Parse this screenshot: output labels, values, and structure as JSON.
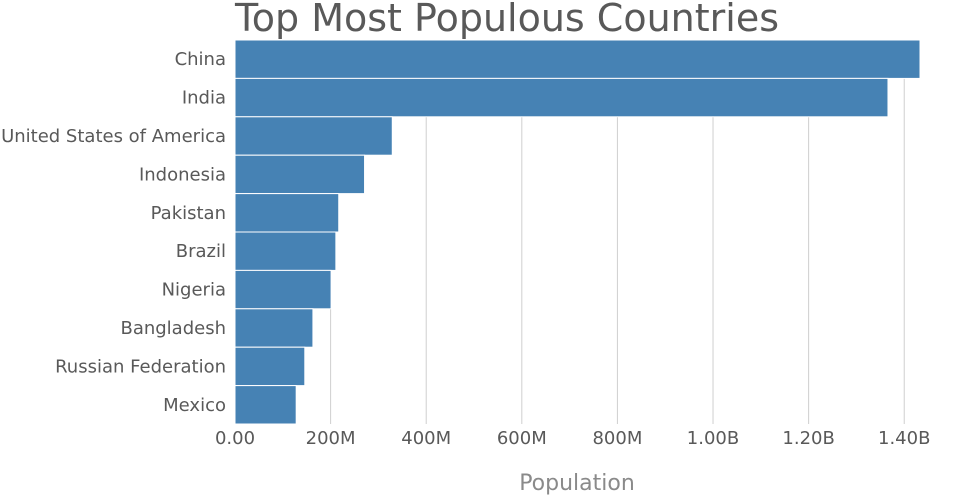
{
  "chart_data": {
    "type": "bar",
    "orientation": "horizontal",
    "title": "Top Most Populous Countries",
    "xlabel": "Population",
    "ylabel": "",
    "categories": [
      "China",
      "India",
      "United States of America",
      "Indonesia",
      "Pakistan",
      "Brazil",
      "Nigeria",
      "Bangladesh",
      "Russian Federation",
      "Mexico"
    ],
    "values": [
      1433000000,
      1366000000,
      329000000,
      271000000,
      217000000,
      211000000,
      201000000,
      163000000,
      146000000,
      128000000
    ],
    "xlim": [
      0,
      1433000000
    ],
    "ticks": [
      {
        "value": 0,
        "label": "0.00"
      },
      {
        "value": 200000000,
        "label": "200M"
      },
      {
        "value": 400000000,
        "label": "400M"
      },
      {
        "value": 600000000,
        "label": "600M"
      },
      {
        "value": 800000000,
        "label": "800M"
      },
      {
        "value": 1000000000,
        "label": "1.00B"
      },
      {
        "value": 1200000000,
        "label": "1.20B"
      },
      {
        "value": 1400000000,
        "label": "1.40B"
      }
    ],
    "grid": true,
    "legend": "none",
    "bar_color": "#4682b4"
  }
}
